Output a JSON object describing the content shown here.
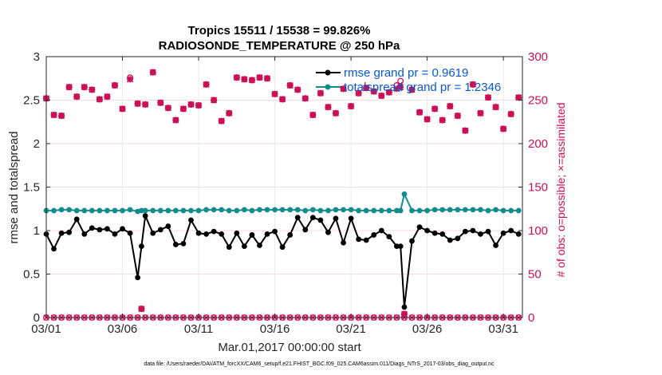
{
  "chart_data": {
    "type": "line",
    "title": "Tropics 15511 / 15538 = 99.826%",
    "subtitle": "RADIOSONDE_TEMPERATURE @ 250 hPa",
    "xlabel": "Mar.01,2017 00:00:00 start",
    "ylabel": "rmse and totalspread",
    "ylabel_right": "# of obs: o=possible; ×=assimilated",
    "footnote": "data file: /Users/raeder/DAI/ATM_forcXX/CAM6_setup/f.e21.FHIST_BGC.f09_025.CAM6assim.011/Diags_NTrS_2017-03/obs_diag_output.nc",
    "xlim": [
      0,
      31.25
    ],
    "ylim": [
      0,
      3
    ],
    "ylim_right": [
      0,
      300
    ],
    "xticks": [
      0,
      5,
      10,
      15,
      20,
      25,
      30
    ],
    "xtick_labels": [
      "03/01",
      "03/06",
      "03/11",
      "03/16",
      "03/21",
      "03/26",
      "03/31"
    ],
    "yticks": [
      0,
      0.5,
      1,
      1.5,
      2,
      2.5,
      3
    ],
    "ytick_labels": [
      "0",
      "0.5",
      "1",
      "1.5",
      "2",
      "2.5",
      "3"
    ],
    "yticks_right": [
      0,
      50,
      100,
      150,
      200,
      250,
      300
    ],
    "ytick_labels_right": [
      "0",
      "50",
      "100",
      "150",
      "200",
      "250",
      "300"
    ],
    "grid": true,
    "legend_position": "top-right",
    "colors": {
      "rmse": "#000000",
      "totalspread": "#138c8c",
      "obs": "#cc0e57",
      "legend_text": "#0a58ca"
    },
    "series": [
      {
        "name": "rmse grand pr = 0.9619",
        "axis": "left",
        "x": [
          0,
          0.5,
          1,
          1.5,
          2,
          2.5,
          3,
          3.5,
          4,
          4.5,
          5,
          5.5,
          6,
          6.25,
          6.5,
          7,
          7.5,
          8,
          8.5,
          9,
          9.5,
          10,
          10.5,
          11,
          11.5,
          12,
          12.5,
          13,
          13.5,
          14,
          14.5,
          15,
          15.5,
          16,
          16.5,
          17,
          17.5,
          18,
          18.5,
          19,
          19.5,
          20,
          20.5,
          21,
          21.5,
          22,
          22.5,
          23,
          23.25,
          23.5,
          24,
          24.5,
          25,
          25.5,
          26,
          26.5,
          27,
          27.5,
          28,
          28.5,
          29,
          29.5,
          30,
          30.5,
          31
        ],
        "values": [
          0.96,
          0.79,
          0.97,
          0.98,
          1.13,
          0.96,
          1.03,
          1.01,
          1.02,
          0.96,
          1.02,
          0.97,
          0.46,
          0.82,
          1.17,
          0.97,
          1.01,
          1.05,
          0.84,
          0.85,
          1.12,
          0.97,
          0.96,
          0.99,
          0.96,
          0.81,
          0.97,
          0.82,
          0.95,
          0.83,
          0.96,
          0.99,
          0.81,
          0.95,
          1.15,
          1.01,
          1.15,
          1.12,
          0.98,
          1.14,
          0.86,
          1.14,
          0.9,
          0.89,
          0.95,
          1.0,
          0.93,
          0.82,
          0.82,
          0.12,
          0.88,
          1.04,
          1.0,
          0.97,
          0.96,
          0.89,
          0.91,
          0.99,
          1.0,
          0.96,
          0.99,
          0.83,
          0.97,
          1.0,
          0.96
        ]
      },
      {
        "name": "totalspread grand pr = 1.2346",
        "axis": "left",
        "x": [
          0,
          0.5,
          1,
          1.5,
          2,
          2.5,
          3,
          3.5,
          4,
          4.5,
          5,
          5.5,
          6,
          6.25,
          6.5,
          7,
          7.5,
          8,
          8.5,
          9,
          9.5,
          10,
          10.5,
          11,
          11.5,
          12,
          12.5,
          13,
          13.5,
          14,
          14.5,
          15,
          15.5,
          16,
          16.5,
          17,
          17.5,
          18,
          18.5,
          19,
          19.5,
          20,
          20.5,
          21,
          21.5,
          22,
          22.5,
          23,
          23.25,
          23.5,
          24,
          24.5,
          25,
          25.5,
          26,
          26.5,
          27,
          27.5,
          28,
          28.5,
          29,
          29.5,
          30,
          30.5,
          31
        ],
        "values": [
          1.23,
          1.23,
          1.24,
          1.24,
          1.23,
          1.23,
          1.23,
          1.23,
          1.23,
          1.23,
          1.23,
          1.24,
          1.22,
          1.23,
          1.23,
          1.23,
          1.23,
          1.23,
          1.23,
          1.23,
          1.23,
          1.23,
          1.24,
          1.24,
          1.24,
          1.23,
          1.23,
          1.24,
          1.23,
          1.24,
          1.24,
          1.24,
          1.24,
          1.24,
          1.24,
          1.23,
          1.24,
          1.23,
          1.23,
          1.24,
          1.24,
          1.24,
          1.23,
          1.23,
          1.23,
          1.23,
          1.23,
          1.23,
          1.23,
          1.42,
          1.23,
          1.23,
          1.23,
          1.24,
          1.24,
          1.24,
          1.24,
          1.24,
          1.24,
          1.24,
          1.23,
          1.24,
          1.23,
          1.23,
          1.23
        ]
      },
      {
        "name": "obs possible",
        "axis": "right",
        "x": [
          0,
          0.5,
          1,
          1.5,
          2,
          2.5,
          3,
          3.5,
          4,
          4.5,
          5,
          5.5,
          6,
          6.25,
          6.5,
          7,
          7.5,
          8,
          8.5,
          9,
          9.5,
          10,
          10.5,
          11,
          11.5,
          12,
          12.5,
          13,
          13.5,
          14,
          14.5,
          15,
          15.5,
          16,
          16.5,
          17,
          17.5,
          18,
          18.5,
          19,
          19.5,
          20,
          20.5,
          21,
          21.5,
          22,
          22.5,
          23,
          23.25,
          23.5,
          24,
          24.5,
          25,
          25.5,
          26,
          26.5,
          27,
          27.5,
          28,
          28.5,
          29,
          29.5,
          30,
          30.5,
          31
        ],
        "values": [
          252,
          233,
          232,
          265,
          254,
          265,
          262,
          251,
          254,
          267,
          240,
          276,
          246,
          10,
          245,
          282,
          247,
          241,
          227,
          240,
          245,
          244,
          268,
          250,
          226,
          235,
          276,
          274,
          273,
          276,
          275,
          257,
          251,
          267,
          262,
          252,
          233,
          258,
          242,
          235,
          263,
          243,
          258,
          264,
          260,
          255,
          259,
          267,
          272,
          4,
          262,
          236,
          228,
          240,
          227,
          243,
          232,
          215,
          268,
          235,
          253,
          242,
          217,
          234,
          253
        ]
      },
      {
        "name": "obs assimilated",
        "axis": "right",
        "x": [
          0,
          0.5,
          1,
          1.5,
          2,
          2.5,
          3,
          3.5,
          4,
          4.5,
          5,
          5.5,
          6,
          6.25,
          6.5,
          7,
          7.5,
          8,
          8.5,
          9,
          9.5,
          10,
          10.5,
          11,
          11.5,
          12,
          12.5,
          13,
          13.5,
          14,
          14.5,
          15,
          15.5,
          16,
          16.5,
          17,
          17.5,
          18,
          18.5,
          19,
          19.5,
          20,
          20.5,
          21,
          21.5,
          22,
          22.5,
          23,
          23.25,
          23.5,
          24,
          24.5,
          25,
          25.5,
          26,
          26.5,
          27,
          27.5,
          28,
          28.5,
          29,
          29.5,
          30,
          30.5,
          31
        ],
        "values": [
          252,
          233,
          232,
          265,
          254,
          265,
          262,
          251,
          254,
          267,
          240,
          274,
          246,
          10,
          245,
          282,
          247,
          241,
          227,
          240,
          245,
          244,
          268,
          250,
          226,
          235,
          276,
          274,
          273,
          276,
          275,
          257,
          251,
          267,
          262,
          252,
          233,
          258,
          242,
          235,
          263,
          243,
          258,
          264,
          260,
          255,
          259,
          263,
          265,
          4,
          262,
          236,
          228,
          240,
          227,
          243,
          232,
          215,
          268,
          235,
          253,
          242,
          217,
          234,
          253
        ]
      }
    ]
  }
}
